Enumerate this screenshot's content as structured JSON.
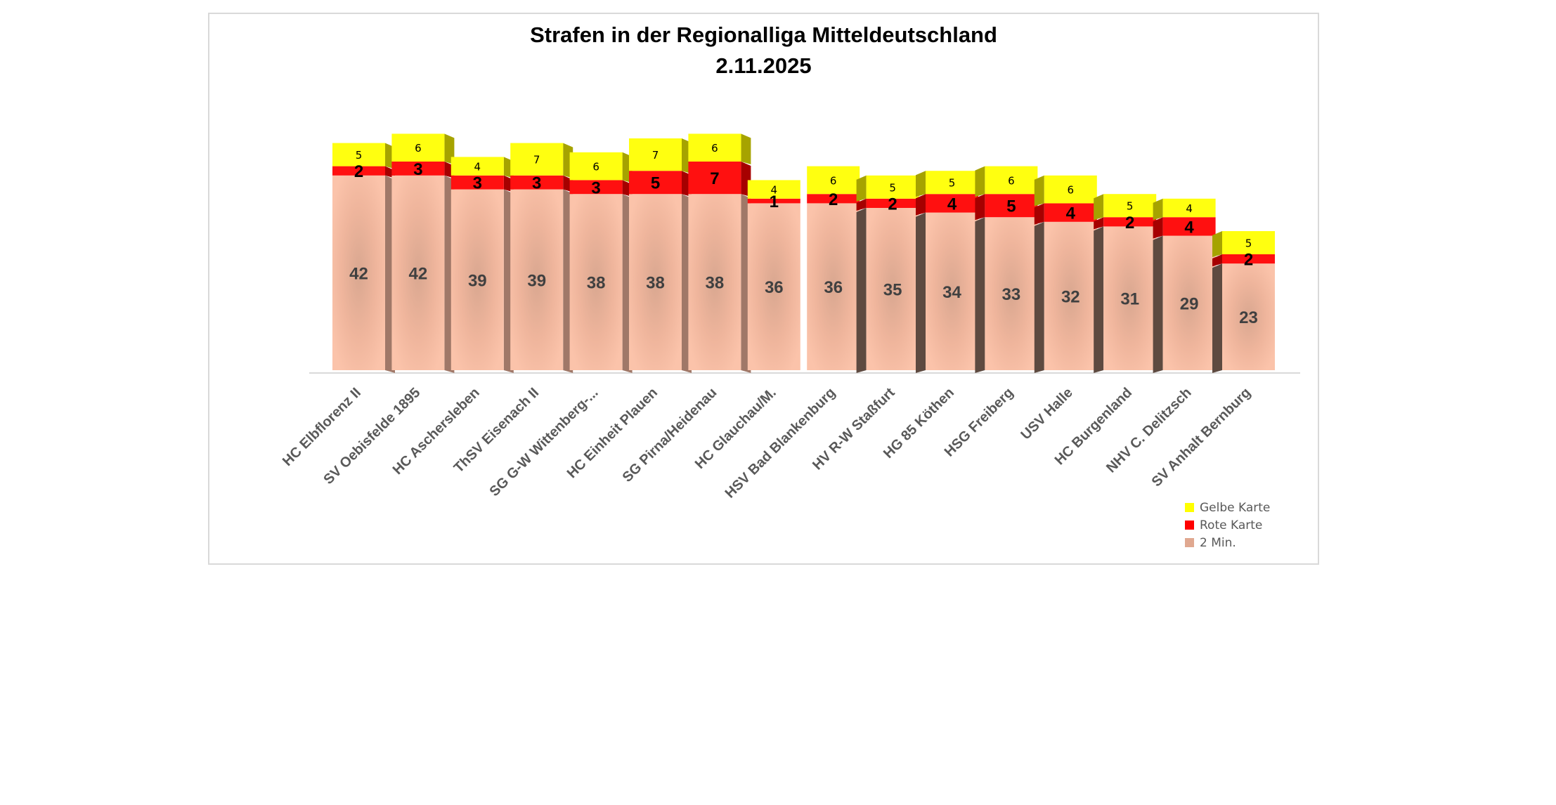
{
  "chart_data": {
    "type": "bar",
    "stacked": true,
    "style": "3d-column",
    "title": "Strafen in der Regionalliga Mitteldeutschland",
    "subtitle": "2.11.2025",
    "xlabel": "",
    "ylabel": "",
    "ylim": [
      0,
      50
    ],
    "grid": false,
    "legend_position": "bottom-right",
    "categories": [
      "HC Elbflorenz II",
      "SV Oebisfelde 1895",
      "HC Aschersleben",
      "ThSV Eisenach II",
      "SG G-W Wittenberg-...",
      "HC Einheit Plauen",
      "SG Pirna/Heidenau",
      "HC Glauchau/M.",
      "HSV Bad Blankenburg",
      "HV R-W Staßfurt",
      "HG 85 Köthen",
      "HSG Freiberg",
      "USV Halle",
      "HC Burgenland",
      "NHV C. Delitzsch",
      "SV Anhalt Bernburg"
    ],
    "series": [
      {
        "name": "2 Min.",
        "color": "#f4b9a0",
        "values": [
          42,
          42,
          39,
          39,
          38,
          38,
          38,
          36,
          36,
          35,
          34,
          33,
          32,
          31,
          29,
          23
        ]
      },
      {
        "name": "Rote Karte",
        "color": "#ff0000",
        "values": [
          2,
          3,
          3,
          3,
          3,
          5,
          7,
          1,
          2,
          2,
          4,
          5,
          4,
          2,
          4,
          2
        ]
      },
      {
        "name": "Gelbe Karte",
        "color": "#ffff00",
        "values": [
          5,
          6,
          4,
          7,
          6,
          7,
          6,
          4,
          6,
          5,
          5,
          6,
          6,
          5,
          4,
          5
        ]
      }
    ],
    "legend": [
      {
        "label": "Gelbe Karte",
        "color": "#ffff00"
      },
      {
        "label": "Rote Karte",
        "color": "#ff0000"
      },
      {
        "label": "2 Min.",
        "color": "#e0a890"
      }
    ]
  }
}
